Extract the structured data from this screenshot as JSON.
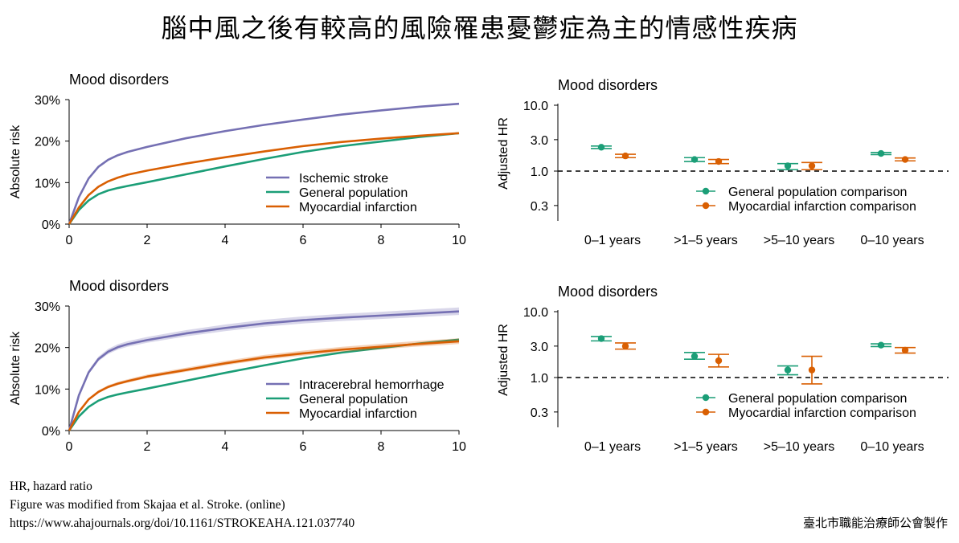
{
  "title": "腦中風之後有較高的風險罹患憂鬱症為主的情感性疾病",
  "footer": {
    "line1": "HR, hazard ratio",
    "line2": "Figure was modified from Skajaa et al. Stroke. (online)",
    "line3": "https://www.ahajournals.org/doi/10.1161/STROKEAHA.121.037740",
    "credit": "臺北市職能治療師公會製作"
  },
  "colors": {
    "stroke": "#7570b3",
    "general": "#1b9e77",
    "mi": "#d95f02"
  },
  "chart_data": [
    {
      "type": "line",
      "title": "Mood disorders",
      "xlabel": "",
      "ylabel": "Absolute risk",
      "xlim": [
        0,
        10
      ],
      "ylim": [
        0,
        0.3
      ],
      "xticks": [
        "0",
        "2",
        "4",
        "6",
        "8",
        "10"
      ],
      "yticks": [
        "0%",
        "10%",
        "20%",
        "30%"
      ],
      "legend": "inside-right",
      "series": [
        {
          "name": "Ischemic stroke",
          "color": "#7570b3",
          "band": false,
          "x": [
            0,
            0.25,
            0.5,
            0.75,
            1,
            1.25,
            1.5,
            2,
            3,
            4,
            5,
            6,
            7,
            8,
            9,
            10
          ],
          "y": [
            0,
            0.065,
            0.11,
            0.138,
            0.155,
            0.166,
            0.174,
            0.186,
            0.207,
            0.224,
            0.239,
            0.252,
            0.264,
            0.274,
            0.283,
            0.29
          ]
        },
        {
          "name": "General population",
          "color": "#1b9e77",
          "band": false,
          "x": [
            0,
            0.25,
            0.5,
            0.75,
            1,
            1.25,
            1.5,
            2,
            3,
            4,
            5,
            6,
            7,
            8,
            9,
            10
          ],
          "y": [
            0,
            0.034,
            0.057,
            0.072,
            0.081,
            0.087,
            0.092,
            0.101,
            0.12,
            0.139,
            0.157,
            0.174,
            0.188,
            0.199,
            0.21,
            0.219
          ]
        },
        {
          "name": "Myocardial infarction",
          "color": "#d95f02",
          "band": false,
          "x": [
            0,
            0.25,
            0.5,
            0.75,
            1,
            1.25,
            1.5,
            2,
            3,
            4,
            5,
            6,
            7,
            8,
            9,
            10
          ],
          "y": [
            0,
            0.04,
            0.07,
            0.09,
            0.103,
            0.112,
            0.119,
            0.129,
            0.146,
            0.161,
            0.175,
            0.188,
            0.198,
            0.206,
            0.213,
            0.219
          ]
        }
      ]
    },
    {
      "type": "forest",
      "title": "Mood disorders",
      "ylabel": "Adjusted HR",
      "yscale": "log",
      "ylim": [
        0.2,
        10
      ],
      "yticks": [
        10.0,
        3.0,
        1.0,
        0.3
      ],
      "ytick_labels": [
        "10.0",
        "3.0",
        "1.0",
        "0.3"
      ],
      "reference_line": 1.0,
      "categories": [
        "0–1 years",
        ">1–5 years",
        ">5–10 years",
        "0–10 years"
      ],
      "legend": "bottom-right",
      "series": [
        {
          "name": "General population comparison",
          "color": "#1b9e77",
          "estimate": [
            2.3,
            1.5,
            1.2,
            1.85
          ],
          "lower": [
            2.2,
            1.4,
            1.05,
            1.78
          ],
          "upper": [
            2.4,
            1.6,
            1.3,
            1.92
          ]
        },
        {
          "name": "Myocardial infarction comparison",
          "color": "#d95f02",
          "estimate": [
            1.7,
            1.4,
            1.2,
            1.5
          ],
          "lower": [
            1.6,
            1.3,
            1.05,
            1.43
          ],
          "upper": [
            1.8,
            1.5,
            1.35,
            1.58
          ]
        }
      ]
    },
    {
      "type": "line",
      "title": "Mood disorders",
      "xlabel": "",
      "ylabel": "Absolute risk",
      "xlim": [
        0,
        10
      ],
      "ylim": [
        0,
        0.3
      ],
      "xticks": [
        "0",
        "2",
        "4",
        "6",
        "8",
        "10"
      ],
      "yticks": [
        "0%",
        "10%",
        "20%",
        "30%"
      ],
      "legend": "inside-right",
      "series": [
        {
          "name": "Intracerebral hemorrhage",
          "color": "#7570b3",
          "band": true,
          "x": [
            0,
            0.25,
            0.5,
            0.75,
            1,
            1.25,
            1.5,
            2,
            3,
            4,
            5,
            6,
            7,
            8,
            9,
            10
          ],
          "y": [
            0,
            0.085,
            0.14,
            0.172,
            0.19,
            0.201,
            0.208,
            0.218,
            0.234,
            0.247,
            0.258,
            0.266,
            0.272,
            0.277,
            0.282,
            0.287
          ]
        },
        {
          "name": "General population",
          "color": "#1b9e77",
          "band": false,
          "x": [
            0,
            0.25,
            0.5,
            0.75,
            1,
            1.25,
            1.5,
            2,
            3,
            4,
            5,
            6,
            7,
            8,
            9,
            10
          ],
          "y": [
            0,
            0.034,
            0.057,
            0.072,
            0.081,
            0.087,
            0.092,
            0.101,
            0.12,
            0.139,
            0.157,
            0.174,
            0.188,
            0.199,
            0.21,
            0.219
          ]
        },
        {
          "name": "Myocardial infarction",
          "color": "#d95f02",
          "band": true,
          "x": [
            0,
            0.25,
            0.5,
            0.75,
            1,
            1.25,
            1.5,
            2,
            3,
            4,
            5,
            6,
            7,
            8,
            9,
            10
          ],
          "y": [
            0,
            0.045,
            0.075,
            0.093,
            0.105,
            0.113,
            0.119,
            0.13,
            0.146,
            0.162,
            0.176,
            0.186,
            0.195,
            0.202,
            0.209,
            0.215
          ]
        }
      ]
    },
    {
      "type": "forest",
      "title": "Mood disorders",
      "ylabel": "Adjusted HR",
      "yscale": "log",
      "ylim": [
        0.2,
        10
      ],
      "yticks": [
        10.0,
        3.0,
        1.0,
        0.3
      ],
      "ytick_labels": [
        "10.0",
        "3.0",
        "1.0",
        "0.3"
      ],
      "reference_line": 1.0,
      "categories": [
        "0–1 years",
        ">1–5 years",
        ">5–10 years",
        "0–10 years"
      ],
      "legend": "bottom-right",
      "series": [
        {
          "name": "General population comparison",
          "color": "#1b9e77",
          "estimate": [
            3.9,
            2.1,
            1.3,
            3.1
          ],
          "lower": [
            3.6,
            1.9,
            1.1,
            2.95
          ],
          "upper": [
            4.2,
            2.4,
            1.5,
            3.25
          ]
        },
        {
          "name": "Myocardial infarction comparison",
          "color": "#d95f02",
          "estimate": [
            3.0,
            1.8,
            1.3,
            2.6
          ],
          "lower": [
            2.7,
            1.45,
            0.8,
            2.35
          ],
          "upper": [
            3.35,
            2.25,
            2.1,
            2.85
          ]
        }
      ]
    }
  ]
}
